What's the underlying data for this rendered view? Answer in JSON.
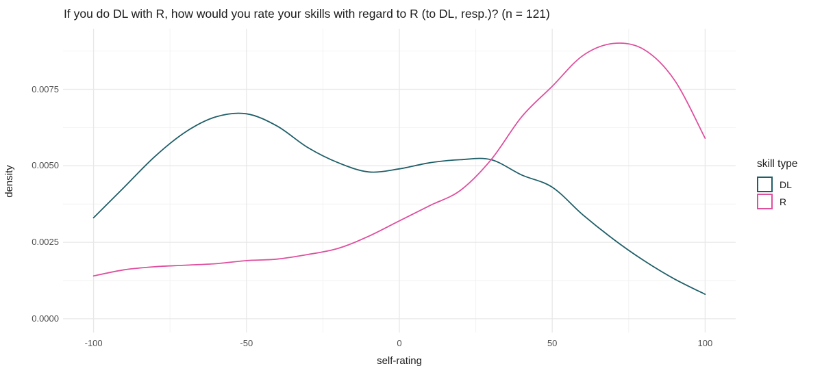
{
  "title": "If you do DL with R, how would you rate your skills with regard to R (to DL, resp.)? (n = 121)",
  "legend": {
    "title": "skill type",
    "items": [
      {
        "label": "DL",
        "color": "#1e5e68"
      },
      {
        "label": "R",
        "color": "#de4f9e"
      }
    ]
  },
  "colors": {
    "background": "#ffffff",
    "title_text": "#1b1b1b",
    "axis_title_text": "#1b1b1b",
    "tick_label_text": "#4f4f4f",
    "grid_major": "#e8e8e8",
    "grid_minor": "#f2f2f2",
    "series_dl": "#1e5e68",
    "series_r": "#de4f9e"
  },
  "chart_data": {
    "type": "line",
    "title": "If you do DL with R, how would you rate your skills with regard to R (to DL, resp.)? (n = 121)",
    "xlabel": "self-rating",
    "ylabel": "density",
    "xlim": [
      -110,
      110
    ],
    "ylim": [
      -0.00045,
      0.00948
    ],
    "x_tick_labels": [
      "-100",
      "-50",
      "0",
      "50",
      "100"
    ],
    "y_tick_labels": [
      "0.0000",
      "0.0025",
      "0.0050",
      "0.0075"
    ],
    "grid": {
      "on": true,
      "x_major": [
        -100,
        -50,
        0,
        50,
        100
      ],
      "x_minor": [
        -75,
        -25,
        25,
        75
      ],
      "y_major": [
        0,
        0.0025,
        0.005,
        0.0075
      ],
      "y_minor": [
        0.00125,
        0.00375,
        0.00625,
        0.00875
      ]
    },
    "legend_position": "right",
    "legend_title": "skill type",
    "x": [
      -100,
      -90,
      -80,
      -70,
      -60,
      -50,
      -40,
      -30,
      -20,
      -10,
      0,
      10,
      20,
      30,
      40,
      50,
      60,
      70,
      80,
      90,
      100
    ],
    "series": [
      {
        "name": "DL",
        "color": "#1e5e68",
        "values": [
          0.0033,
          0.0043,
          0.0053,
          0.0061,
          0.0066,
          0.0067,
          0.0063,
          0.0056,
          0.0051,
          0.0048,
          0.0049,
          0.0051,
          0.0052,
          0.0052,
          0.0047,
          0.0043,
          0.0034,
          0.0026,
          0.0019,
          0.0013,
          0.0008
        ]
      },
      {
        "name": "R",
        "color": "#de4f9e",
        "values": [
          0.0014,
          0.0016,
          0.0017,
          0.00175,
          0.0018,
          0.0019,
          0.00195,
          0.0021,
          0.0023,
          0.0027,
          0.0032,
          0.0037,
          0.0042,
          0.0052,
          0.0066,
          0.0076,
          0.0086,
          0.009,
          0.0088,
          0.0078,
          0.0059
        ]
      }
    ]
  }
}
